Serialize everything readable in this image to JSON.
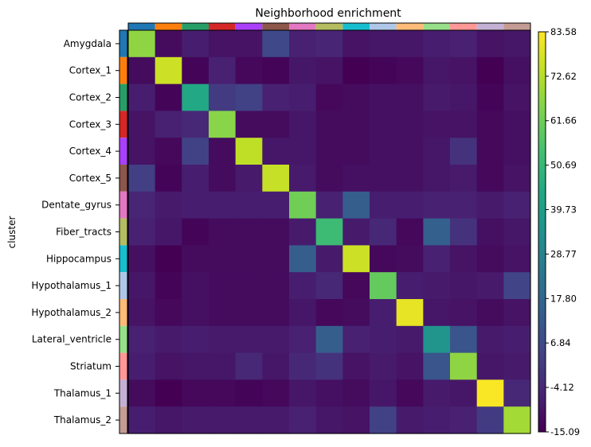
{
  "chart_data": {
    "type": "heatmap",
    "title": "Neighborhood enrichment",
    "ylabel": "cluster",
    "xlabel": "",
    "categories": [
      "Amygdala",
      "Cortex_1",
      "Cortex_2",
      "Cortex_3",
      "Cortex_4",
      "Cortex_5",
      "Dentate_gyrus",
      "Fiber_tracts",
      "Hippocampus",
      "Hypothalamus_1",
      "Hypothalamus_2",
      "Lateral_ventricle",
      "Striatum",
      "Thalamus_1",
      "Thalamus_2"
    ],
    "category_colors": [
      "#1f77b4",
      "#ff7f0e",
      "#279e68",
      "#d62728",
      "#aa40fc",
      "#8c564b",
      "#e377c2",
      "#b5bd61",
      "#17becf",
      "#aec7e8",
      "#ffbb78",
      "#98df8a",
      "#ff9896",
      "#c5b0d5",
      "#c49c94"
    ],
    "values": [
      [
        67,
        -12,
        -7,
        -10,
        -10,
        6,
        -6,
        -5,
        -10,
        -9,
        -9,
        -7,
        -6,
        -10,
        -9
      ],
      [
        -12,
        76,
        -14,
        -6,
        -13,
        -14,
        -9,
        -10,
        -15,
        -14,
        -13,
        -9,
        -10,
        -15,
        -11
      ],
      [
        -7,
        -14,
        44,
        2,
        4,
        -6,
        -7,
        -13,
        -12,
        -11,
        -11,
        -8,
        -9,
        -14,
        -10
      ],
      [
        -10,
        -6,
        -4,
        66,
        -12,
        -12,
        -9,
        -12,
        -12,
        -11,
        -11,
        -10,
        -10,
        -13,
        -11
      ],
      [
        -10,
        -13,
        4,
        -12,
        74,
        -9,
        -9,
        -12,
        -12,
        -11,
        -11,
        -9,
        -1,
        -13,
        -11
      ],
      [
        3,
        -14,
        -7,
        -12,
        -8,
        75,
        -8,
        -12,
        -11,
        -11,
        -11,
        -9,
        -8,
        -13,
        -10
      ],
      [
        -5,
        -8,
        -7,
        -7,
        -7,
        -7,
        62,
        -6,
        14,
        -7,
        -7,
        -6,
        -6,
        -8,
        -6
      ],
      [
        -6,
        -9,
        -14,
        -12,
        -12,
        -12,
        -8,
        52,
        -8,
        -4,
        -13,
        15,
        -1,
        -11,
        -9
      ],
      [
        -11,
        -15,
        -12,
        -12,
        -12,
        -12,
        14,
        -8,
        76,
        -13,
        -12,
        -6,
        -10,
        -12,
        -10
      ],
      [
        -9,
        -14,
        -11,
        -12,
        -12,
        -12,
        -7,
        -4,
        -13,
        60,
        -7,
        -8,
        -9,
        -8,
        5
      ],
      [
        -10,
        -13,
        -11,
        -12,
        -12,
        -12,
        -9,
        -13,
        -12,
        -7,
        80,
        -9,
        -10,
        -12,
        -10
      ],
      [
        -6,
        -8,
        -7,
        -8,
        -8,
        -8,
        -6,
        14,
        -6,
        -7,
        -8,
        36,
        11,
        -8,
        -7
      ],
      [
        -7,
        -10,
        -9,
        -9,
        -4,
        -9,
        -4,
        -1,
        -10,
        -8,
        -10,
        11,
        67,
        -9,
        -8
      ],
      [
        -12,
        -15,
        -13,
        -13,
        -14,
        -13,
        -9,
        -11,
        -12,
        -9,
        -13,
        -8,
        -9,
        83,
        -4
      ],
      [
        -7,
        -9,
        -8,
        -8,
        -8,
        -8,
        -6,
        -9,
        -10,
        4,
        -8,
        -7,
        -6,
        2,
        70
      ]
    ],
    "zlim": [
      -15.09,
      83.58
    ],
    "colormap": "viridis",
    "colorbar_ticks": [
      "83.58",
      "72.62",
      "61.66",
      "50.69",
      "39.73",
      "28.77",
      "17.80",
      "6.84",
      "-4.12",
      "-15.09"
    ],
    "grid": false
  }
}
